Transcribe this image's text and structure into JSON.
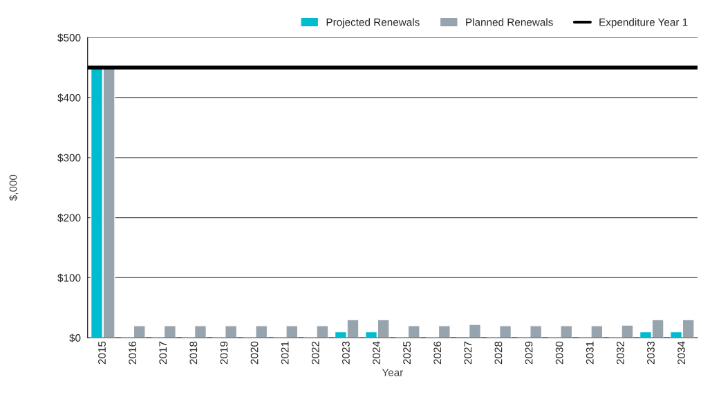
{
  "chart_data": {
    "type": "bar",
    "xlabel": "Year",
    "ylabel": "$,000",
    "categories": [
      "2015",
      "2016",
      "2017",
      "2018",
      "2019",
      "2020",
      "2021",
      "2022",
      "2023",
      "2024",
      "2025",
      "2026",
      "2027",
      "2028",
      "2029",
      "2030",
      "2031",
      "2032",
      "2033",
      "2034"
    ],
    "series": [
      {
        "name": "Projected Renewals",
        "color": "#00bcd1",
        "values": [
          450,
          1,
          1,
          1,
          1,
          1,
          1,
          1,
          10,
          10,
          1,
          1,
          2,
          1,
          1,
          1,
          1,
          1,
          10,
          10
        ]
      },
      {
        "name": "Planned Renewals",
        "color": "#97a3ad",
        "values": [
          450,
          20,
          20,
          20,
          20,
          20,
          20,
          20,
          30,
          30,
          20,
          20,
          22,
          20,
          20,
          20,
          20,
          21,
          30,
          30
        ]
      }
    ],
    "ref_lines": [
      {
        "axis": "y",
        "value": 450,
        "label": "Expenditure Year 1",
        "color": "#000000",
        "line_style": "solid"
      }
    ],
    "ylim": [
      0,
      500
    ],
    "yticks": [
      {
        "value": 0,
        "label": "$0"
      },
      {
        "value": 100,
        "label": "$100"
      },
      {
        "value": 200,
        "label": "$200"
      },
      {
        "value": 300,
        "label": "$300"
      },
      {
        "value": 400,
        "label": "$400"
      },
      {
        "value": 500,
        "label": "$500"
      }
    ],
    "grid": "y",
    "legend": "top right"
  }
}
